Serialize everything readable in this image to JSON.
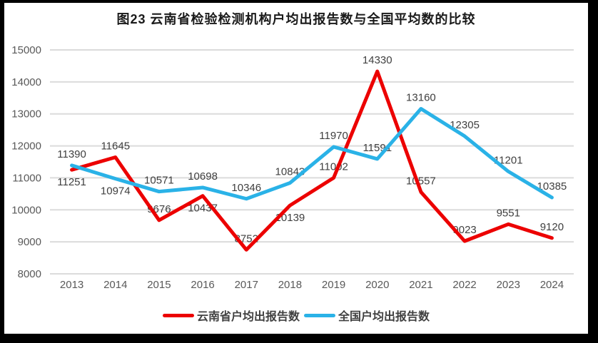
{
  "chart_data": {
    "type": "line",
    "title": "图23 云南省检验检测机构户均出报告数与全国平均数的比较",
    "categories": [
      "2013",
      "2014",
      "2015",
      "2016",
      "2017",
      "2018",
      "2019",
      "2020",
      "2021",
      "2022",
      "2023",
      "2024"
    ],
    "series": [
      {
        "id": "yunnan",
        "name": "云南省户均出报告数",
        "color": "#EC0000",
        "values": [
          11251,
          11645,
          9676,
          10437,
          8752,
          10139,
          11002,
          14330,
          10557,
          9023,
          9551,
          9120
        ],
        "label_positions": [
          "below",
          "above",
          "above",
          "below",
          "above",
          "below",
          "above",
          "above",
          "above",
          "above",
          "above",
          "above"
        ]
      },
      {
        "id": "national",
        "name": "全国户均出报告数",
        "color": "#2AB2E7",
        "values": [
          11390,
          10974,
          10571,
          10698,
          10346,
          10843,
          11970,
          11591,
          13160,
          12305,
          11201,
          10385
        ],
        "label_positions": [
          "above",
          "below",
          "above",
          "above",
          "above",
          "above",
          "above",
          "above",
          "above",
          "above",
          "above",
          "above"
        ]
      }
    ],
    "y_axis": {
      "min": 8000,
      "max": 15000,
      "step": 1000,
      "ticks": [
        "8000",
        "9000",
        "10000",
        "11000",
        "12000",
        "13000",
        "14000",
        "15000"
      ]
    },
    "x_axis": {
      "ticks": [
        "2013",
        "2014",
        "2015",
        "2016",
        "2017",
        "2018",
        "2019",
        "2020",
        "2021",
        "2022",
        "2023",
        "2024"
      ]
    },
    "grid": "horizontal",
    "legend_position": "bottom",
    "data_labels": true,
    "colors": {
      "grid": "#DBDBDB",
      "axis_text": "#595959",
      "data_label_text": "#3F3F3F",
      "title_text": "#1A1A1A",
      "plot_background": "#FFFFFF",
      "frame_border": "#000000"
    }
  }
}
